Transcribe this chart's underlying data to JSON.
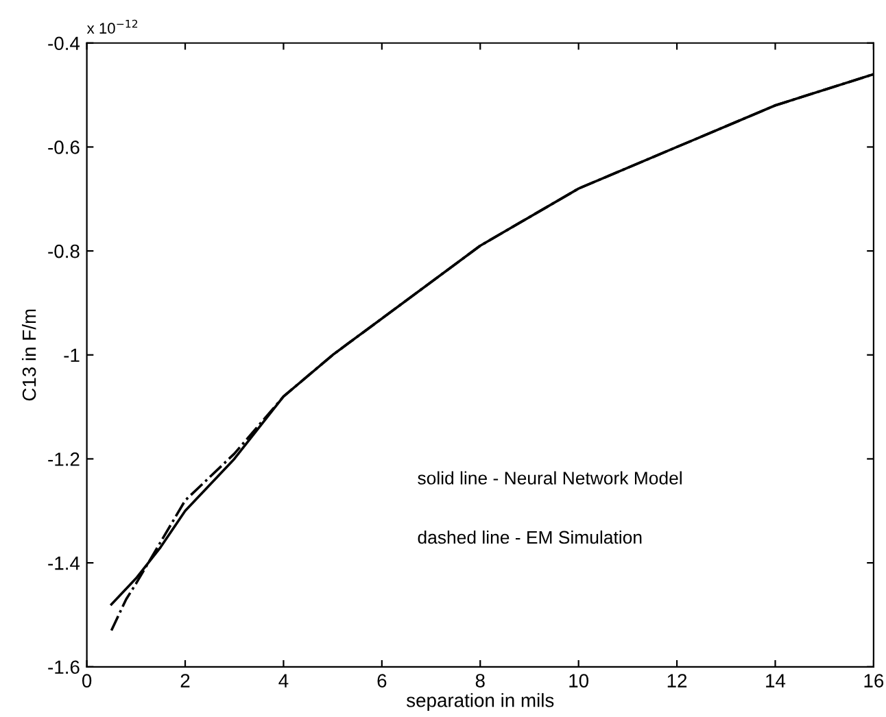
{
  "chart_data": {
    "type": "line",
    "xlabel": "separation in mils",
    "ylabel": "C13 in F/m",
    "xlim": [
      0,
      16
    ],
    "xticks": [
      0,
      2,
      4,
      6,
      8,
      10,
      12,
      14,
      16
    ],
    "ylim": [
      -1.6,
      -0.4
    ],
    "yticks": [
      -1.6,
      -1.4,
      -1.2,
      -1,
      -0.8,
      -0.6,
      -0.4
    ],
    "grid": false,
    "legend": false,
    "marker": "none",
    "series": [
      {
        "color": "#000000",
        "line_style": "solid",
        "x": [
          0.5,
          1,
          1.5,
          2,
          3,
          4,
          5,
          6,
          8,
          10,
          12,
          14,
          16
        ],
        "values": [
          -1.48,
          -1.43,
          -1.37,
          -1.3,
          -1.2,
          -1.08,
          -1.0,
          -0.93,
          -0.79,
          -0.68,
          -0.6,
          -0.52,
          -0.46
        ]
      },
      {
        "color": "#000000",
        "line_style": "dashed",
        "x": [
          0.5,
          0.8,
          1,
          1.5,
          2,
          3,
          4,
          5,
          6,
          8,
          10,
          12,
          14,
          16
        ],
        "values": [
          -1.53,
          -1.47,
          -1.44,
          -1.36,
          -1.28,
          -1.19,
          -1.08,
          -1.0,
          -0.93,
          -0.79,
          -0.68,
          -0.6,
          -0.52,
          -0.46
        ]
      }
    ],
    "annotations": [
      "x 10$^{−12}$",
      "solid line - Neural Network Model",
      "dashed line - EM Simulation"
    ]
  }
}
